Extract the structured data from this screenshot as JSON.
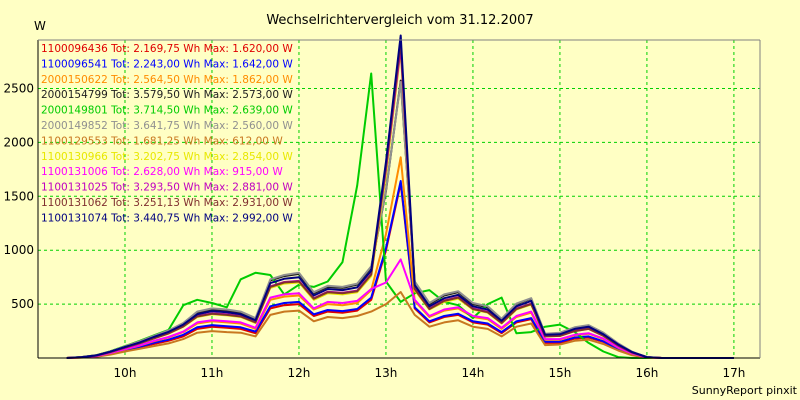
{
  "chart_data": {
    "type": "line",
    "title": "Wechselrichtervergleich vom 31.12.2007",
    "ylabel": "W",
    "xlabel": "",
    "footer": "SunnyReport pinxit",
    "xlim": [
      9.0,
      17.3
    ],
    "ylim": [
      0,
      2950
    ],
    "yticks": [
      500,
      1000,
      1500,
      2000,
      2500
    ],
    "xticks": [
      10,
      11,
      12,
      13,
      14,
      15,
      16,
      17
    ],
    "xtick_labels": [
      "10h",
      "11h",
      "12h",
      "13h",
      "14h",
      "15h",
      "16h",
      "17h"
    ],
    "grid": true,
    "legend_position": "top-left inside",
    "colors": {
      "background": "#ffffc4",
      "plot_background": "#ffffc4",
      "grid": "#00d000",
      "axis": "#000000"
    },
    "x": [
      9.33,
      9.5,
      9.67,
      9.83,
      10.0,
      10.17,
      10.33,
      10.5,
      10.67,
      10.83,
      11.0,
      11.17,
      11.33,
      11.5,
      11.67,
      11.83,
      12.0,
      12.17,
      12.33,
      12.5,
      12.67,
      12.83,
      13.0,
      13.17,
      13.33,
      13.5,
      13.67,
      13.83,
      14.0,
      14.17,
      14.33,
      14.5,
      14.67,
      14.83,
      15.0,
      15.17,
      15.33,
      15.5,
      15.67,
      15.83,
      16.0,
      16.17,
      16.33,
      16.5,
      16.67,
      16.83,
      17.0
    ],
    "series": [
      {
        "name": "1100096436 Tot: 2.169,75 Wh Max: 1.620,00 W",
        "color": "#e00000",
        "values": [
          0,
          5,
          15,
          40,
          70,
          100,
          130,
          160,
          200,
          270,
          290,
          280,
          270,
          230,
          460,
          490,
          500,
          390,
          430,
          420,
          440,
          540,
          1000,
          1620,
          460,
          330,
          380,
          400,
          330,
          310,
          230,
          330,
          360,
          140,
          140,
          180,
          190,
          150,
          80,
          30,
          5,
          0,
          0,
          0,
          0,
          0,
          0
        ]
      },
      {
        "name": "1100096541 Tot: 2.243,00 Wh Max: 1.642,00 W",
        "color": "#0000ff",
        "values": [
          0,
          5,
          15,
          40,
          75,
          105,
          140,
          170,
          215,
          285,
          305,
          295,
          285,
          245,
          480,
          510,
          520,
          405,
          445,
          435,
          455,
          560,
          1020,
          1642,
          470,
          340,
          390,
          410,
          340,
          320,
          240,
          340,
          370,
          150,
          150,
          190,
          200,
          155,
          85,
          35,
          5,
          0,
          0,
          0,
          0,
          0,
          0
        ]
      },
      {
        "name": "2000150622 Tot: 2.564,50 Wh Max: 1.862,00 W",
        "color": "#ff8c00",
        "values": [
          0,
          6,
          18,
          45,
          80,
          115,
          155,
          190,
          240,
          320,
          340,
          330,
          320,
          270,
          540,
          570,
          580,
          450,
          500,
          490,
          510,
          630,
          1150,
          1862,
          530,
          380,
          440,
          460,
          380,
          360,
          270,
          380,
          420,
          170,
          170,
          210,
          225,
          175,
          95,
          40,
          6,
          0,
          0,
          0,
          0,
          0,
          0
        ]
      },
      {
        "name": "2000154799 Tot: 3.579,50 Wh Max: 2.573,00 W",
        "color": "#202020",
        "values": [
          0,
          8,
          25,
          60,
          105,
          150,
          200,
          250,
          320,
          420,
          450,
          440,
          420,
          360,
          720,
          760,
          780,
          600,
          660,
          650,
          680,
          840,
          1550,
          2573,
          700,
          500,
          580,
          610,
          500,
          470,
          360,
          500,
          550,
          220,
          230,
          280,
          300,
          230,
          130,
          55,
          8,
          0,
          0,
          0,
          0,
          0,
          0
        ]
      },
      {
        "name": "2000149801 Tot: 3.714,50 Wh Max: 2.639,00 W",
        "color": "#00cc00",
        "values": [
          0,
          8,
          26,
          62,
          110,
          160,
          210,
          260,
          490,
          540,
          510,
          470,
          730,
          790,
          770,
          590,
          680,
          660,
          710,
          890,
          1600,
          2639,
          710,
          520,
          600,
          630,
          520,
          490,
          370,
          500,
          560,
          230,
          240,
          290,
          310,
          240,
          140,
          60,
          8,
          0,
          0,
          0,
          0,
          0,
          0,
          0,
          0
        ]
      },
      {
        "name": "2000149852 Tot: 3.641,75 Wh Max: 2.560,00 W",
        "color": "#909090",
        "values": [
          0,
          8,
          25,
          60,
          108,
          155,
          205,
          255,
          325,
          430,
          460,
          450,
          430,
          370,
          730,
          770,
          790,
          610,
          670,
          660,
          690,
          850,
          1560,
          2560,
          710,
          510,
          590,
          620,
          510,
          480,
          365,
          505,
          555,
          225,
          235,
          285,
          305,
          235,
          135,
          58,
          8,
          0,
          0,
          0,
          0,
          0,
          0
        ]
      },
      {
        "name": "1100129553 Tot: 1.681,25 Wh Max: 612,00 W",
        "color": "#c87820",
        "values": [
          0,
          4,
          12,
          32,
          60,
          85,
          110,
          135,
          175,
          235,
          250,
          240,
          235,
          200,
          400,
          430,
          440,
          340,
          380,
          370,
          390,
          430,
          500,
          612,
          400,
          290,
          330,
          350,
          290,
          270,
          200,
          290,
          320,
          120,
          125,
          160,
          170,
          130,
          70,
          25,
          4,
          0,
          0,
          0,
          0,
          0,
          0
        ]
      },
      {
        "name": "1100130966 Tot: 3.202,75 Wh Max: 2.854,00 W",
        "color": "#e8e800",
        "values": [
          0,
          7,
          22,
          54,
          95,
          135,
          180,
          225,
          290,
          380,
          405,
          395,
          380,
          325,
          650,
          690,
          700,
          540,
          600,
          590,
          610,
          760,
          1700,
          2854,
          630,
          450,
          520,
          550,
          450,
          420,
          320,
          450,
          495,
          200,
          205,
          250,
          270,
          205,
          115,
          50,
          7,
          0,
          0,
          0,
          0,
          0,
          0
        ]
      },
      {
        "name": "1100131006 Tot: 2.628,00 Wh Max: 915,00 W",
        "color": "#ff00ff",
        "values": [
          0,
          6,
          18,
          46,
          82,
          118,
          160,
          195,
          245,
          330,
          350,
          340,
          330,
          280,
          560,
          590,
          600,
          460,
          520,
          510,
          530,
          640,
          700,
          915,
          540,
          390,
          450,
          470,
          390,
          370,
          280,
          390,
          430,
          175,
          175,
          215,
          230,
          180,
          98,
          42,
          6,
          0,
          0,
          0,
          0,
          0,
          0
        ]
      },
      {
        "name": "1100131025 Tot: 3.293,50 Wh Max: 2.881,00 W",
        "color": "#c000c0",
        "values": [
          0,
          7,
          23,
          55,
          97,
          138,
          185,
          230,
          295,
          390,
          415,
          405,
          390,
          335,
          665,
          705,
          715,
          555,
          615,
          605,
          625,
          780,
          1750,
          2881,
          645,
          460,
          535,
          565,
          460,
          430,
          330,
          460,
          505,
          205,
          210,
          255,
          275,
          210,
          118,
          52,
          7,
          0,
          0,
          0,
          0,
          0,
          0
        ]
      },
      {
        "name": "1100131062 Tot: 3.251,13 Wh Max: 2.931,00 W",
        "color": "#803030",
        "values": [
          0,
          7,
          22,
          54,
          96,
          136,
          182,
          228,
          292,
          385,
          410,
          400,
          385,
          330,
          660,
          700,
          710,
          550,
          610,
          600,
          620,
          775,
          1780,
          2931,
          640,
          455,
          530,
          560,
          455,
          425,
          325,
          455,
          500,
          200,
          205,
          250,
          270,
          205,
          115,
          50,
          7,
          0,
          0,
          0,
          0,
          0,
          0
        ]
      },
      {
        "name": "1100131074 Tot: 3.440,75 Wh Max: 2.992,00 W",
        "color": "#000080",
        "values": [
          0,
          8,
          24,
          58,
          102,
          145,
          195,
          242,
          310,
          405,
          435,
          425,
          405,
          350,
          695,
          735,
          750,
          580,
          640,
          630,
          655,
          810,
          1820,
          2992,
          675,
          480,
          555,
          585,
          480,
          450,
          345,
          480,
          530,
          215,
          220,
          270,
          290,
          220,
          125,
          55,
          8,
          0,
          0,
          0,
          0,
          0,
          0
        ]
      }
    ]
  }
}
